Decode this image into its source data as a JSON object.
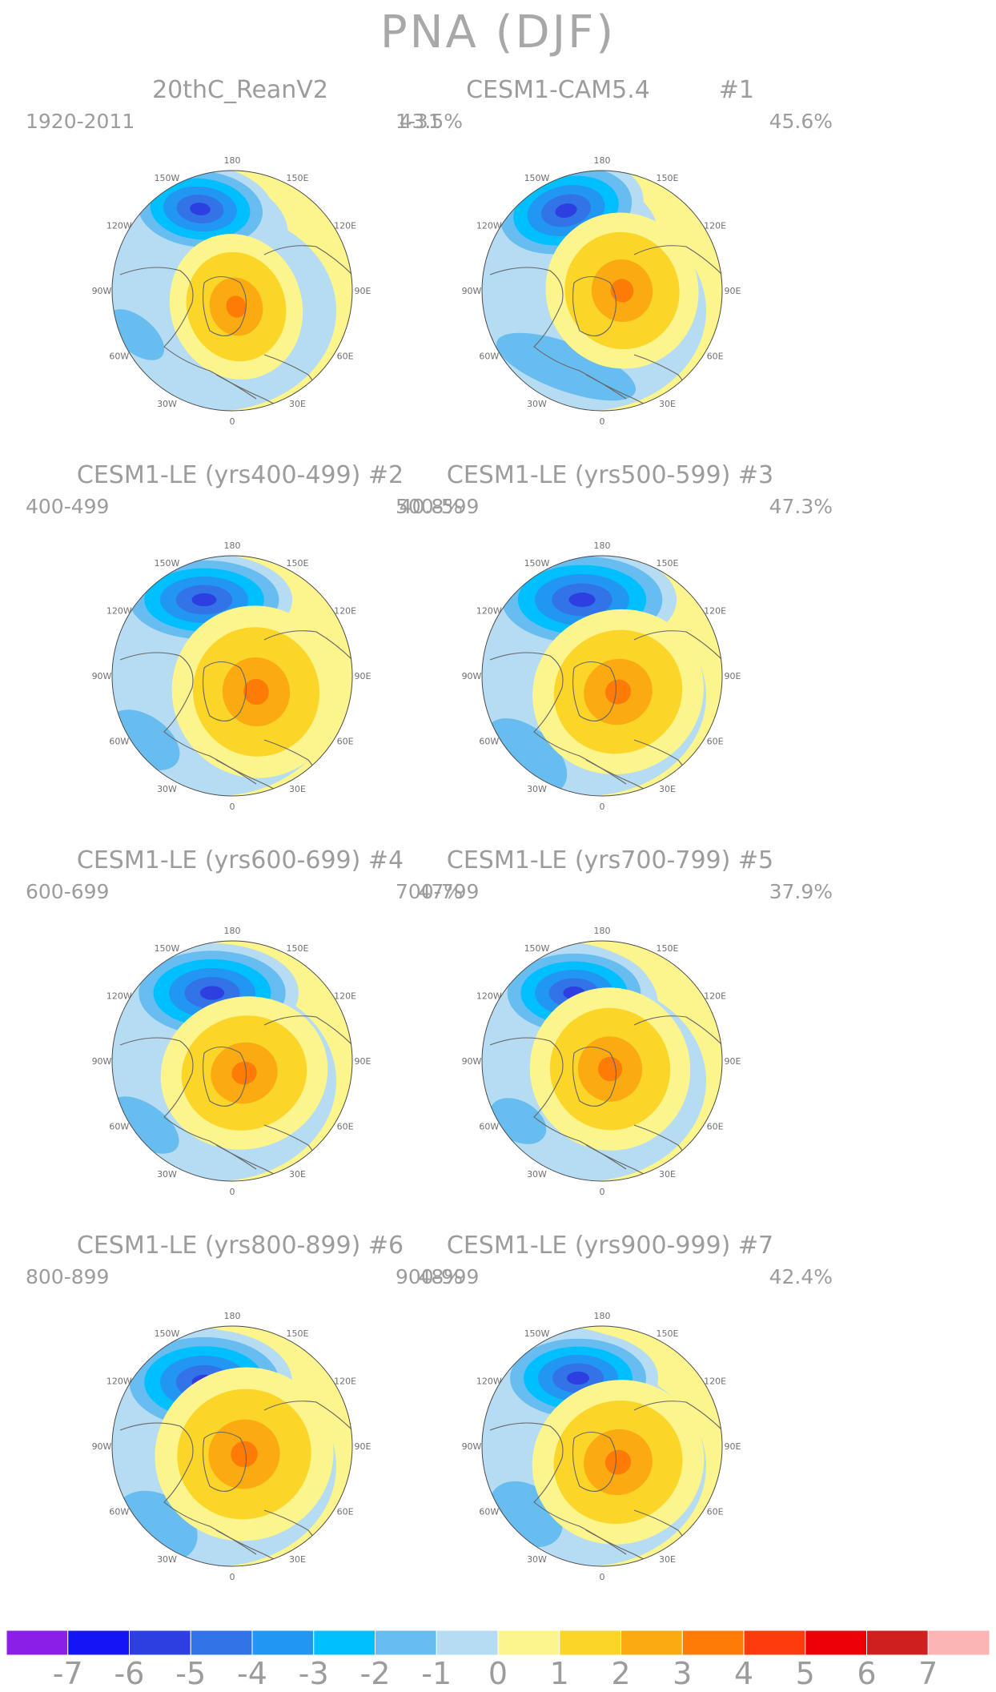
{
  "figure": {
    "title": "PNA (DJF)"
  },
  "panels": [
    {
      "title": "20thC_ReanV2",
      "years": "1920-2011",
      "variance": "43.5%"
    },
    {
      "title": "CESM1-CAM5.4         #1",
      "years": "1-31",
      "variance": "45.6%"
    },
    {
      "title": "CESM1-LE (yrs400-499) #2",
      "years": "400-499",
      "variance": "40.8%"
    },
    {
      "title": "CESM1-LE (yrs500-599) #3",
      "years": "500-599",
      "variance": "47.3%"
    },
    {
      "title": "CESM1-LE (yrs600-699) #4",
      "years": "600-699",
      "variance": "47%"
    },
    {
      "title": "CESM1-LE (yrs700-799) #5",
      "years": "700-799",
      "variance": "37.9%"
    },
    {
      "title": "CESM1-LE (yrs800-899) #6",
      "years": "800-899",
      "variance": "48%"
    },
    {
      "title": "CESM1-LE (yrs900-999) #7",
      "years": "900-999",
      "variance": "42.4%"
    }
  ],
  "longitude_labels": [
    "180",
    "150E",
    "120E",
    "90E",
    "60E",
    "30E",
    "0",
    "30W",
    "60W",
    "90W",
    "120W",
    "150W"
  ],
  "colorbar": {
    "labels": [
      "-7",
      "-6",
      "-5",
      "-4",
      "-3",
      "-2",
      "-1",
      "0",
      "1",
      "2",
      "3",
      "4",
      "5",
      "6",
      "7"
    ],
    "colors": [
      "#8b1fe8",
      "#1414f5",
      "#2d3fe0",
      "#3274e8",
      "#2196f3",
      "#00bfff",
      "#67bdf0",
      "#b5dcf2",
      "#fcf48c",
      "#fbd629",
      "#fbaa12",
      "#fd7b06",
      "#fd3b0d",
      "#ee0009",
      "#d01f1f",
      "#fbb5b5"
    ]
  }
}
